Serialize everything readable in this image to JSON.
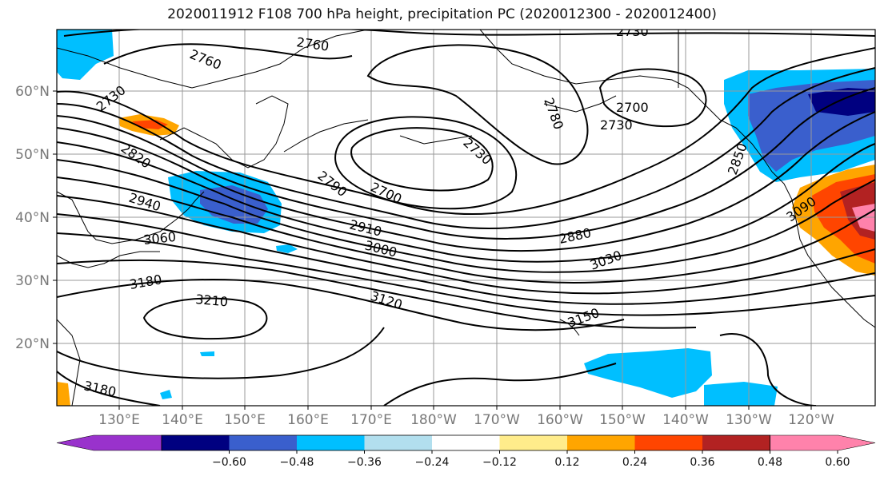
{
  "title": "2020011912 F108 700 hPa height, precipitation PC (2020012300 - 2020012400)",
  "lat_labels": [
    "60°N",
    "50°N",
    "40°N",
    "30°N",
    "20°N"
  ],
  "lon_labels": [
    "130°E",
    "140°E",
    "150°E",
    "160°E",
    "170°E",
    "180°W",
    "170°W",
    "160°W",
    "150°W",
    "140°W",
    "130°W",
    "120°W"
  ],
  "contour_labels": [
    "2760",
    "2760",
    "2730",
    "2730",
    "2790",
    "2700",
    "2730",
    "2780",
    "2700",
    "2730",
    "2820",
    "2940",
    "3060",
    "2910",
    "3000",
    "2880",
    "3030",
    "2850",
    "3090",
    "3180",
    "3210",
    "3120",
    "3150",
    "3180"
  ],
  "colorbar": {
    "colors": [
      "#9932CC",
      "#000080",
      "#3A5FCD",
      "#00BFFF",
      "#B2DFEE",
      "#FFFFFF",
      "#FFEC8B",
      "#FFA500",
      "#FF4500",
      "#B22222",
      "#FF82AB"
    ],
    "tick_labels": [
      "−0.60",
      "−0.48",
      "−0.36",
      "−0.24",
      "−0.12",
      "0.12",
      "0.24",
      "0.36",
      "0.48",
      "0.60"
    ]
  }
}
